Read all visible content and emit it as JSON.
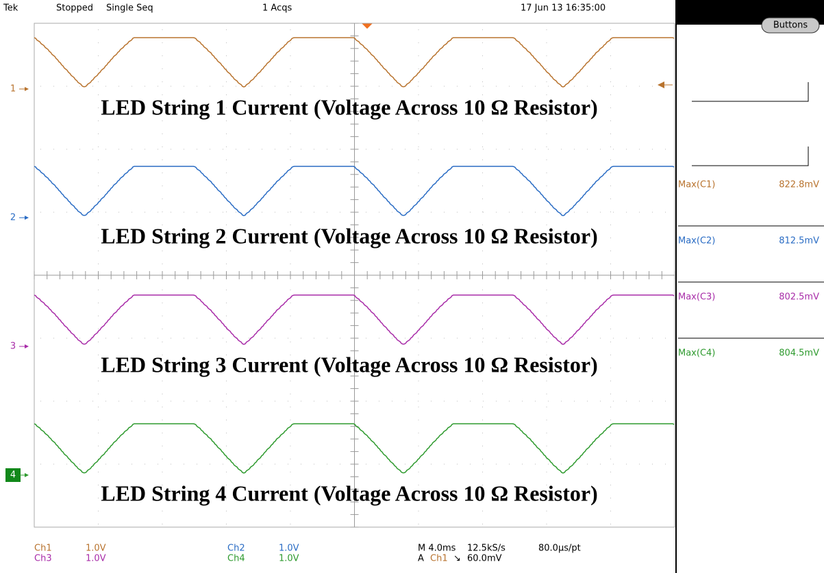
{
  "header": {
    "brand": "Tek",
    "state": "Stopped",
    "mode": "Single Seq",
    "acquisitions": "1 Acqs",
    "timestamp": "17 Jun 13 16:35:00"
  },
  "button": "Buttons",
  "channels": [
    {
      "marker": "1",
      "annotation": "LED String 1 Current (Voltage Across 10 Ω Resistor)",
      "measure_label": "Max(C1)",
      "measure_value": "822.8mV",
      "color": "#b8732e"
    },
    {
      "marker": "2",
      "annotation": "LED String 2 Current (Voltage Across 10 Ω Resistor)",
      "measure_label": "Max(C2)",
      "measure_value": "812.5mV",
      "color": "#2a6cc4"
    },
    {
      "marker": "3",
      "annotation": "LED String 3 Current (Voltage Across 10 Ω Resistor)",
      "measure_label": "Max(C3)",
      "measure_value": "802.5mV",
      "color": "#a82ca8"
    },
    {
      "marker": "4",
      "annotation": "LED String 4 Current (Voltage Across 10 Ω Resistor)",
      "measure_label": "Max(C4)",
      "measure_value": "804.5mV",
      "color": "#2e9a2e"
    }
  ],
  "footer": {
    "scales": [
      [
        "Ch1",
        "1.0V"
      ],
      [
        "Ch2",
        "1.0V"
      ],
      [
        "Ch3",
        "1.0V"
      ],
      [
        "Ch4",
        "1.0V"
      ]
    ],
    "timebase": "M 4.0ms",
    "sample_rate": "12.5kS/s",
    "resolution": "80.0µs/pt",
    "trigger": {
      "prefix": "A",
      "source": "Ch1",
      "slope": "↘",
      "level": "60.0mV"
    }
  }
}
